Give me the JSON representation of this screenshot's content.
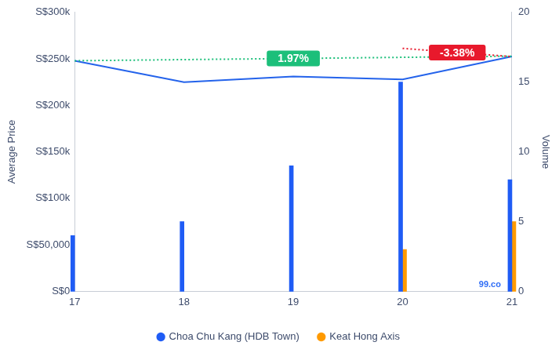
{
  "chart_data": {
    "type": "bar",
    "x_label": null,
    "y_label": "Average Price",
    "y2_label": "Volume",
    "source": "99.co",
    "categories": [
      "17",
      "18",
      "19",
      "20",
      "21"
    ],
    "ylim": [
      0,
      300000
    ],
    "yticks": [
      {
        "value": 0,
        "label": "S$0"
      },
      {
        "value": 50000,
        "label": "S$50,000"
      },
      {
        "value": 100000,
        "label": "S$100k"
      },
      {
        "value": 150000,
        "label": "S$150k"
      },
      {
        "value": 200000,
        "label": "S$200k"
      },
      {
        "value": 250000,
        "label": "S$250k"
      },
      {
        "value": 300000,
        "label": "S$300k"
      }
    ],
    "y2lim": [
      0,
      20
    ],
    "y2ticks": [
      0,
      5,
      10,
      15,
      20
    ],
    "grid": false,
    "legend": "bottom",
    "series": [
      {
        "name": "Choa Chu Kang (HDB Town)",
        "type": "bar",
        "axis": "y2",
        "color": "#1f5cf5",
        "values": [
          4,
          5,
          9,
          15,
          8
        ]
      },
      {
        "name": "Keat Hong Axis",
        "type": "bar",
        "axis": "y2",
        "color": "#ff9a00",
        "values": [
          null,
          null,
          null,
          3,
          5
        ]
      },
      {
        "type": "line",
        "color": "#2463eb",
        "marker": "none",
        "values": [
          248000,
          225000,
          231000,
          228000,
          252500
        ]
      }
    ],
    "trend_lines": [
      {
        "label": "1.97%",
        "color": "#1cbf7a",
        "line_style": "dotted",
        "values": [
          248000,
          null,
          null,
          null,
          252900
        ]
      },
      {
        "label": "-3.38%",
        "color": "#e8192c",
        "line_style": "dotted",
        "values": [
          null,
          null,
          null,
          261300,
          252470
        ]
      }
    ]
  }
}
